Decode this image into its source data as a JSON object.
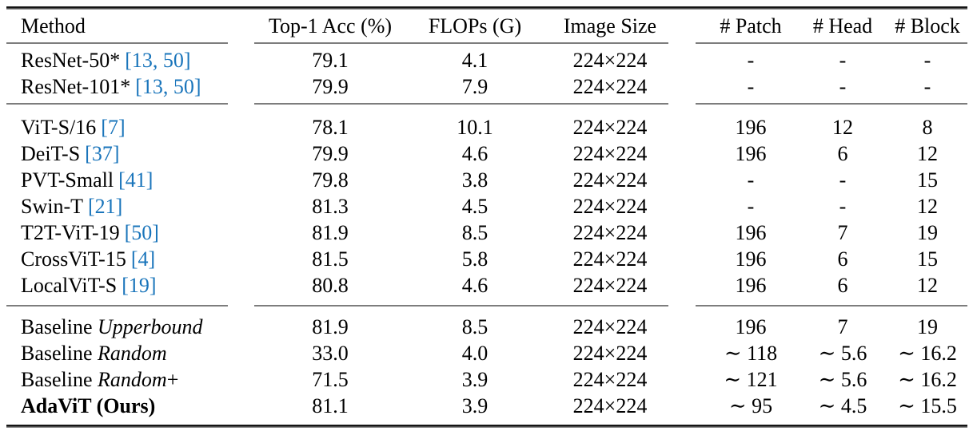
{
  "page": {
    "background": "#ffffff"
  },
  "colors": {
    "citation_blue": "#1a75bb",
    "rule_dark": "#141414",
    "rule_gray": "#7d7d7d"
  },
  "table": {
    "columns": [
      "Method",
      "Top-1 Acc (%)",
      "FLOPs (G)",
      "Image Size",
      "# Patch",
      "# Head",
      "# Block"
    ],
    "rows": [
      {
        "method": "ResNet-50*",
        "cite": "[13, 50]",
        "acc": "79.1",
        "flops": "4.1",
        "size": "224×224",
        "patch": "-",
        "head": "-",
        "block": "-"
      },
      {
        "method": "ResNet-101*",
        "cite": "[13, 50]",
        "acc": "79.9",
        "flops": "7.9",
        "size": "224×224",
        "patch": "-",
        "head": "-",
        "block": "-"
      },
      {
        "method": "ViT-S/16",
        "cite": "[7]",
        "acc": "78.1",
        "flops": "10.1",
        "size": "224×224",
        "patch": "196",
        "head": "12",
        "block": "8"
      },
      {
        "method": "DeiT-S",
        "cite": "[37]",
        "acc": "79.9",
        "flops": "4.6",
        "size": "224×224",
        "patch": "196",
        "head": "6",
        "block": "12"
      },
      {
        "method": "PVT-Small",
        "cite": "[41]",
        "acc": "79.8",
        "flops": "3.8",
        "size": "224×224",
        "patch": "-",
        "head": "-",
        "block": "15"
      },
      {
        "method": "Swin-T",
        "cite": "[21]",
        "acc": "81.3",
        "flops": "4.5",
        "size": "224×224",
        "patch": "-",
        "head": "-",
        "block": "12"
      },
      {
        "method": "T2T-ViT-19",
        "cite": "[50]",
        "acc": "81.9",
        "flops": "8.5",
        "size": "224×224",
        "patch": "196",
        "head": "7",
        "block": "19"
      },
      {
        "method": "CrossViT-15",
        "cite": "[4]",
        "acc": "81.5",
        "flops": "5.8",
        "size": "224×224",
        "patch": "196",
        "head": "6",
        "block": "15"
      },
      {
        "method": "LocalViT-S",
        "cite": "[19]",
        "acc": "80.8",
        "flops": "4.6",
        "size": "224×224",
        "patch": "196",
        "head": "6",
        "block": "12"
      },
      {
        "method_prefix": "Baseline ",
        "method_em": "Upperbound",
        "acc": "81.9",
        "flops": "8.5",
        "size": "224×224",
        "patch": "196",
        "head": "7",
        "block": "19"
      },
      {
        "method_prefix": "Baseline ",
        "method_em": "Random",
        "acc": "33.0",
        "flops": "4.0",
        "size": "224×224",
        "patch": "∼ 118",
        "head": "∼ 5.6",
        "block": "∼ 16.2"
      },
      {
        "method_prefix": "Baseline ",
        "method_em": "Random",
        "method_suffix": "+",
        "acc": "71.5",
        "flops": "3.9",
        "size": "224×224",
        "patch": "∼ 121",
        "head": "∼ 5.6",
        "block": "∼ 16.2"
      },
      {
        "method": "AdaViT (Ours)",
        "acc": "81.1",
        "flops": "3.9",
        "size": "224×224",
        "patch": "∼ 95",
        "head": "∼ 4.5",
        "block": "∼ 15.5"
      }
    ]
  }
}
